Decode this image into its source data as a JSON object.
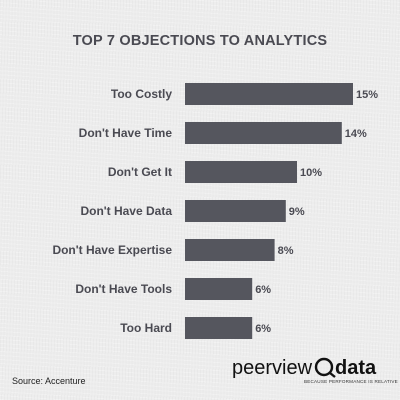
{
  "source": "Source: Accenture",
  "logo": {
    "brand_left": "peerview",
    "brand_right": "data",
    "tagline": "BECAUSE PERFORMANCE IS RELATIVE"
  },
  "colors": {
    "bar": "#55565e",
    "text": "#4a4a52"
  },
  "chart_data": {
    "type": "bar",
    "orientation": "horizontal",
    "title": "TOP 7 OBJECTIONS TO ANALYTICS",
    "categories": [
      "Too Costly",
      "Don't Have Time",
      "Don't Get It",
      "Don't Have Data",
      "Don't Have Expertise",
      "Don't Have Tools",
      "Too Hard"
    ],
    "values": [
      15,
      14,
      10,
      9,
      8,
      6,
      6
    ],
    "value_labels": [
      "15%",
      "14%",
      "10%",
      "9%",
      "8%",
      "6%",
      "6%"
    ],
    "unit": "%",
    "xlim": [
      0,
      15
    ],
    "grid": false,
    "legend": "none"
  }
}
